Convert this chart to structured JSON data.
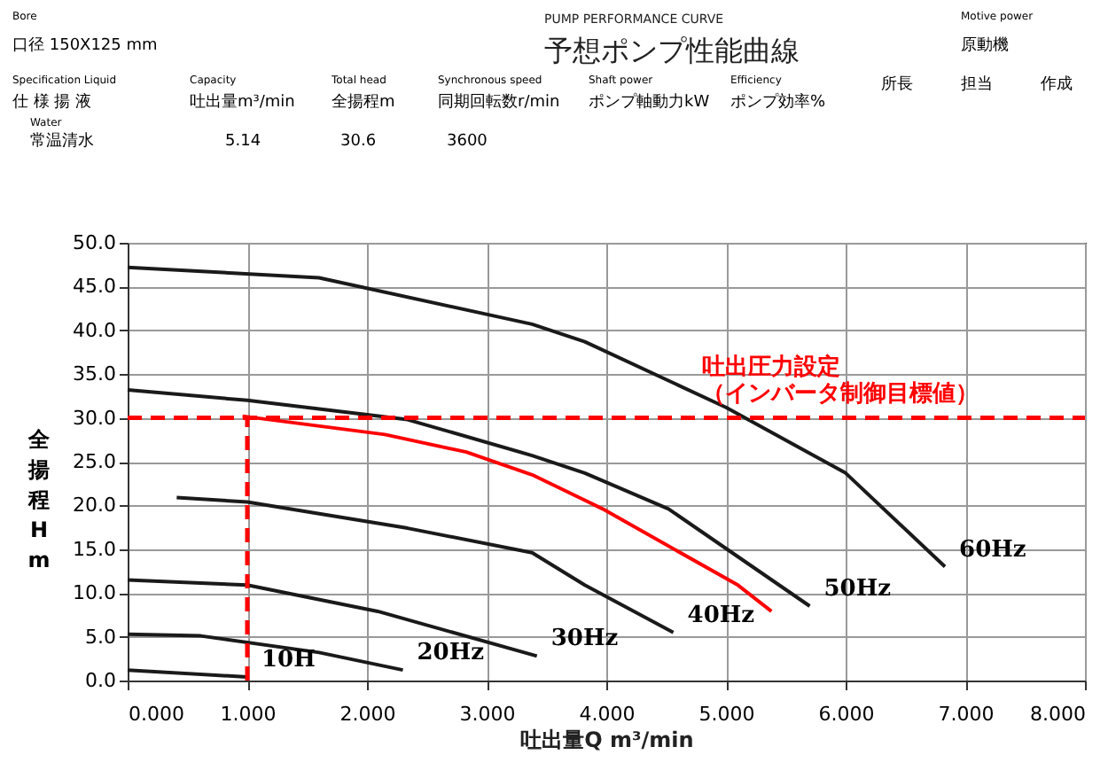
{
  "chart_data": {
    "type": "line",
    "title": "予想ポンプ性能曲線",
    "subtitle": "PUMP PERFORMANCE CURVE",
    "annotations": [
      "Bore",
      "口径 150X125 mm",
      "Motive power",
      "原動機",
      "Specification Liquid",
      "仕 様 揚 液",
      "Water",
      "常温清水",
      "Capacity",
      "吐出量m³/min",
      "5.14",
      "Total head",
      "全揚程m",
      "30.6",
      "Synchronous speed",
      "同期回転数r/min",
      "3600",
      "Shaft power",
      "ポンプ軸動力kW",
      "Efficiency",
      "ポンプ効率%",
      "所長",
      "担当",
      "作成"
    ],
    "xlabel": "吐出量Q  m³/min",
    "ylabel": "全揚程H m",
    "xlim": [
      0,
      8
    ],
    "ylim": [
      0,
      50
    ],
    "xticks": [
      {
        "value": 0,
        "label": "0.000"
      },
      {
        "value": 1,
        "label": "1.000"
      },
      {
        "value": 2,
        "label": "2.000"
      },
      {
        "value": 3,
        "label": "3.000"
      },
      {
        "value": 4,
        "label": "4.000"
      },
      {
        "value": 5,
        "label": "5.000"
      },
      {
        "value": 6,
        "label": "6.000"
      },
      {
        "value": 7,
        "label": "7.000"
      },
      {
        "value": 8,
        "label": "8.000"
      }
    ],
    "yticks": [
      {
        "value": 0,
        "label": "0.0"
      },
      {
        "value": 5,
        "label": "5.0"
      },
      {
        "value": 10,
        "label": "10.0"
      },
      {
        "value": 15,
        "label": "15.0"
      },
      {
        "value": 20,
        "label": "20.0"
      },
      {
        "value": 25,
        "label": "25.0"
      },
      {
        "value": 30,
        "label": "30.0"
      },
      {
        "value": 35,
        "label": "35.0"
      },
      {
        "value": 40,
        "label": "40.0"
      },
      {
        "value": 45,
        "label": "45.0"
      },
      {
        "value": 50,
        "label": "50.0"
      }
    ],
    "grid": true,
    "marker": "none",
    "line_style": "solid",
    "legend": false,
    "ref_lines": [
      {
        "axis": "y",
        "value": 30,
        "label": "吐出圧力設定（インバータ制御目標値）",
        "color": "#ff0000",
        "line_style": "dashed"
      },
      {
        "axis": "x",
        "value": 1,
        "label": null,
        "color": "#ff0000",
        "line_style": "dashed"
      }
    ],
    "series": [
      {
        "name": "60Hz",
        "color": "#1a1a1a",
        "x": [
          0,
          1.6,
          3.38,
          3.82,
          5.0,
          6.0,
          6.83
        ],
        "values": [
          47.2,
          46.0,
          40.7,
          38.7,
          31.2,
          23.7,
          13.0
        ]
      },
      {
        "name": "50Hz",
        "color": "#1a1a1a",
        "x": [
          0,
          1.0,
          2.34,
          3.38,
          3.82,
          4.52,
          5.7
        ],
        "values": [
          33.2,
          32.0,
          29.8,
          25.7,
          23.7,
          19.6,
          8.5
        ]
      },
      {
        "color": "#ff0000",
        "x": [
          0.96,
          2.15,
          2.83,
          3.38,
          3.82,
          3.97,
          5.1,
          5.38
        ],
        "values": [
          30.2,
          28.1,
          26.1,
          23.5,
          20.6,
          19.6,
          10.9,
          7.9
        ]
      },
      {
        "name": "40Hz",
        "color": "#1a1a1a",
        "x": [
          0.41,
          1.0,
          2.34,
          3.38,
          3.82,
          4.56
        ],
        "values": [
          20.9,
          20.4,
          17.4,
          14.6,
          10.9,
          5.5
        ]
      },
      {
        "name": "30Hz",
        "color": "#1a1a1a",
        "x": [
          0,
          1.0,
          2.09,
          3.42
        ],
        "values": [
          11.5,
          10.9,
          7.9,
          2.8
        ]
      },
      {
        "name": "20Hz",
        "color": "#1a1a1a",
        "x": [
          0,
          0.61,
          1.6,
          2.3
        ],
        "values": [
          5.3,
          5.1,
          3.2,
          1.2
        ]
      },
      {
        "name": "10H",
        "color": "#1a1a1a",
        "x": [
          0,
          1.0
        ],
        "values": [
          1.2,
          0.4
        ]
      }
    ]
  }
}
